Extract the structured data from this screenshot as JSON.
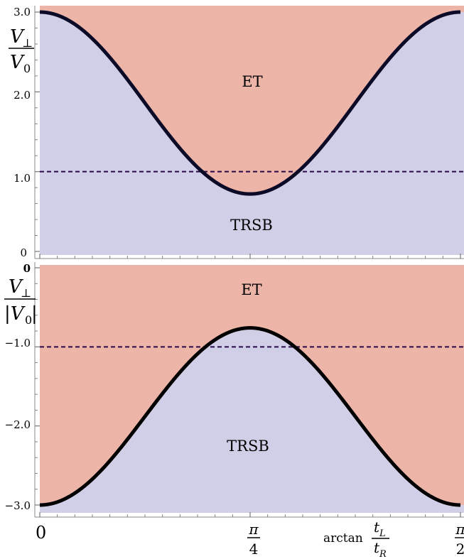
{
  "colors": {
    "et_region": "#edb4a8",
    "trsb_region": "#d1cfe7",
    "curve": "#0b0b28",
    "curve_bottom": "#000000",
    "threshold": "#2a0a4a",
    "axis": "#777777"
  },
  "chart_data": [
    {
      "type": "area",
      "panel": "top",
      "ylabel": {
        "num_main": "V",
        "num_sub": "⊥",
        "den_main": "V",
        "den_sub": "0"
      },
      "x": [
        0,
        0.19635,
        0.392699,
        0.589049,
        0.785398,
        0.981748,
        1.178097,
        1.374447,
        1.570796
      ],
      "xlim": [
        0,
        1.5708
      ],
      "ylim": [
        0,
        3.0
      ],
      "yticks": [
        0,
        1.0,
        2.0,
        3.0
      ],
      "ytick_labels": [
        "0",
        "1.0",
        "2.0",
        "3.0"
      ],
      "series": [
        {
          "values": [
            3.0,
            2.7,
            1.93,
            1.07,
            0.72,
            1.07,
            1.93,
            2.7,
            3.0
          ]
        }
      ],
      "curve_model": {
        "min": 0.72,
        "max": 3.0,
        "form": "min + (max-min)*cos^2(2x)"
      },
      "threshold": 1.0,
      "regions": {
        "above": "ET",
        "below": "TRSB"
      }
    },
    {
      "type": "area",
      "panel": "bottom",
      "ylabel": {
        "num_main": "V",
        "num_sub": "⊥",
        "den_main": "|V",
        "den_sub": "0",
        "den_close": "|"
      },
      "x": [
        0,
        0.19635,
        0.392699,
        0.589049,
        0.785398,
        0.981748,
        1.178097,
        1.374447,
        1.570796
      ],
      "xlim": [
        0,
        1.5708
      ],
      "ylim": [
        -3.0,
        0
      ],
      "yticks": [
        0,
        -1.0,
        -2.0,
        -3.0
      ],
      "ytick_labels": [
        "0",
        "−1.0",
        "−2.0",
        "−3.0"
      ],
      "series": [
        {
          "values": [
            -3.0,
            -2.69,
            -1.93,
            -1.16,
            -0.76,
            -1.16,
            -1.93,
            -2.69,
            -3.0
          ]
        }
      ],
      "curve_model": {
        "min": -3.0,
        "max": -0.76,
        "form": "max - (max-min)*cos^2(2x)"
      },
      "threshold": -1.0,
      "regions": {
        "above": "ET",
        "below": "TRSB"
      }
    }
  ],
  "xaxis": {
    "tick_zero": "0",
    "tick_mid": {
      "num": "π",
      "den": "4"
    },
    "tick_end": {
      "num": "π",
      "den": "2"
    },
    "label": {
      "prefix": "arctan",
      "num_main": "t",
      "num_sub": "L",
      "den_main": "t",
      "den_sub": "R"
    }
  }
}
